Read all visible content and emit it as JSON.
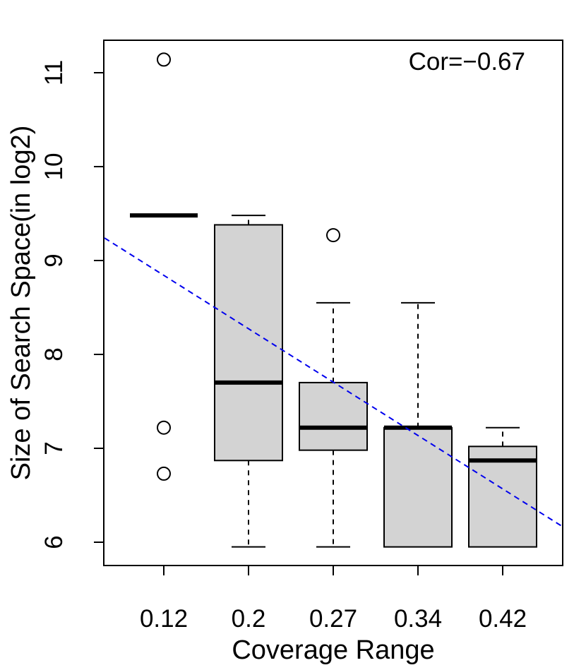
{
  "chart_data": {
    "type": "boxplot",
    "xlabel": "Coverage Range",
    "ylabel": "Size of Search Space(in log2)",
    "annotation": "Cor=−0.67",
    "categories": [
      "0.12",
      "0.2",
      "0.27",
      "0.34",
      "0.42"
    ],
    "ylim": [
      5.8,
      11.35
    ],
    "yticks": [
      6,
      7,
      8,
      9,
      10,
      11
    ],
    "ytick_labels": [
      "6",
      "7",
      "8",
      "9",
      "10",
      "11"
    ],
    "boxes": [
      {
        "category": "0.12",
        "whisker_low": 9.48,
        "q1": 9.48,
        "median": 9.48,
        "q3": 9.48,
        "whisker_high": 9.48,
        "outliers": [
          11.14,
          7.22,
          6.73
        ]
      },
      {
        "category": "0.2",
        "whisker_low": 5.95,
        "q1": 6.87,
        "median": 7.7,
        "q3": 9.38,
        "whisker_high": 9.48,
        "outliers": []
      },
      {
        "category": "0.27",
        "whisker_low": 5.95,
        "q1": 6.98,
        "median": 7.22,
        "q3": 7.7,
        "whisker_high": 8.55,
        "outliers": [
          9.27
        ]
      },
      {
        "category": "0.34",
        "whisker_low": 5.95,
        "q1": 5.95,
        "median": 7.22,
        "q3": 7.22,
        "whisker_high": 8.55,
        "outliers": []
      },
      {
        "category": "0.42",
        "whisker_low": 5.95,
        "q1": 5.95,
        "median": 6.87,
        "q3": 7.02,
        "whisker_high": 7.22,
        "outliers": []
      }
    ],
    "trend_line": {
      "x_start": 0.3,
      "y_start": 9.24,
      "x_end": 5.7,
      "y_end": 6.17,
      "color": "#0000ee",
      "style": "dashed"
    },
    "colors": {
      "box_fill": "#d3d3d3",
      "stroke": "#000000"
    }
  }
}
